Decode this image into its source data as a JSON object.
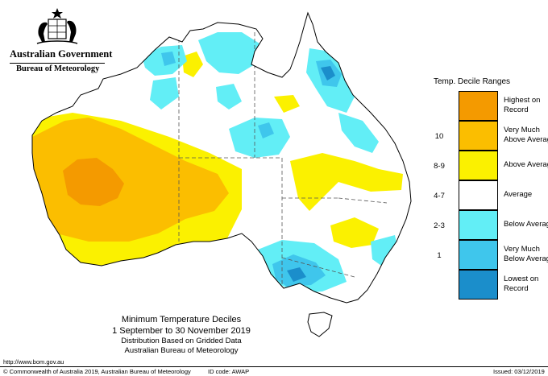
{
  "header": {
    "government": "Australian Government",
    "agency": "Bureau of Meteorology"
  },
  "legend": {
    "title": "Temp. Decile Ranges",
    "items": [
      {
        "range": "",
        "label_line1": "Highest on",
        "label_line2": "Record",
        "color": "#f49a00"
      },
      {
        "range": "10",
        "label_line1": "Very Much",
        "label_line2": "Above Average",
        "color": "#fbbe00"
      },
      {
        "range": "8-9",
        "label_line1": "Above Average",
        "label_line2": "",
        "color": "#fbf100"
      },
      {
        "range": "4-7",
        "label_line1": "Average",
        "label_line2": "",
        "color": "#ffffff"
      },
      {
        "range": "2-3",
        "label_line1": "Below Average",
        "label_line2": "",
        "color": "#62eef6"
      },
      {
        "range": "1",
        "label_line1": "Very Much",
        "label_line2": "Below Average",
        "color": "#3fc6ec"
      },
      {
        "range": "",
        "label_line1": "Lowest on",
        "label_line2": "Record",
        "color": "#1b8ecb"
      }
    ]
  },
  "map_title": {
    "line1": "Minimum Temperature Deciles",
    "line2": "1 September to 30 November 2019",
    "line3": "Distribution Based on Gridded Data",
    "line4": "Australian Bureau of Meteorology"
  },
  "footer": {
    "url": "http://www.bom.gov.au",
    "copyright": "© Commonwealth of Australia 2019, Australian Bureau of Meteorology",
    "id_code": "ID code: AWAP",
    "issued": "Issued: 03/12/2019"
  },
  "colors": {
    "outline": "#000000",
    "border_dash": "#555555"
  }
}
